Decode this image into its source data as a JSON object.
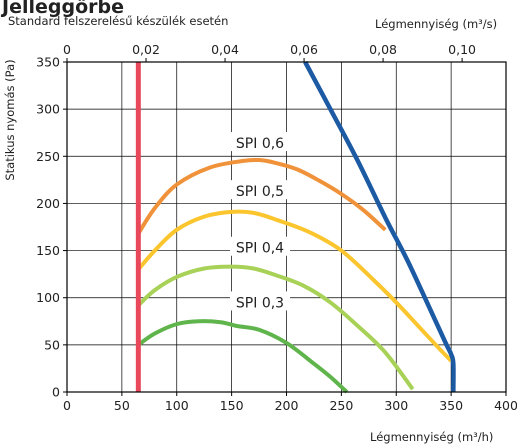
{
  "chart_data": {
    "type": "line",
    "cut_title": "Jelleggörbe",
    "subtitle": "Standard felszerelésű készülék esetén",
    "ylabel": "Statikus nyomás (Pa)",
    "xlabel_bottom": "Légmennyiség (m³/h)",
    "xlabel_top": "Légmennyiség (m³/s)",
    "xlim": [
      0,
      400
    ],
    "ylim": [
      0,
      350
    ],
    "x_ticks_bottom": [
      0,
      50,
      100,
      150,
      200,
      250,
      300,
      350,
      400
    ],
    "y_ticks": [
      0,
      50,
      100,
      150,
      200,
      250,
      300,
      350
    ],
    "x_ticks_top": [
      {
        "label": "0",
        "value_m3h": 0
      },
      {
        "label": "0,02",
        "value_m3h": 72
      },
      {
        "label": "0,04",
        "value_m3h": 144
      },
      {
        "label": "0,06",
        "value_m3h": 216
      },
      {
        "label": "0,08",
        "value_m3h": 288
      },
      {
        "label": "0,10",
        "value_m3h": 360
      }
    ],
    "grid": true,
    "series": [
      {
        "name": "SPI 0,6",
        "color": "#f0923a",
        "x": [
          65,
          80,
          100,
          130,
          160,
          175,
          190,
          210,
          230,
          250,
          270,
          290
        ],
        "y": [
          168,
          195,
          220,
          238,
          245,
          246,
          243,
          236,
          224,
          210,
          193,
          172
        ]
      },
      {
        "name": "SPI 0,5",
        "color": "#fbc52d",
        "x": [
          65,
          80,
          100,
          125,
          150,
          170,
          190,
          220,
          250,
          280,
          300,
          320,
          340,
          350
        ],
        "y": [
          130,
          150,
          172,
          186,
          191,
          190,
          183,
          170,
          150,
          118,
          95,
          70,
          45,
          33
        ]
      },
      {
        "name": "SPI 0,4",
        "color": "#a8d157",
        "x": [
          65,
          80,
          100,
          125,
          150,
          170,
          190,
          215,
          240,
          265,
          290,
          315
        ],
        "y": [
          92,
          108,
          122,
          131,
          133,
          131,
          124,
          113,
          95,
          70,
          42,
          3
        ]
      },
      {
        "name": "SPI 0,3",
        "color": "#5fb54b",
        "x": [
          65,
          80,
          100,
          120,
          140,
          155,
          175,
          200,
          225,
          240,
          255
        ],
        "y": [
          50,
          62,
          72,
          75,
          74,
          70,
          66,
          52,
          30,
          16,
          0
        ]
      },
      {
        "name": "",
        "color": "#1c5aa3",
        "x": [
          217,
          240,
          265,
          290,
          310,
          330,
          345,
          350,
          352,
          352
        ],
        "y": [
          350,
          300,
          245,
          185,
          140,
          90,
          52,
          40,
          30,
          0
        ]
      },
      {
        "name": "",
        "color": "#e8485a",
        "x": [
          65,
          65
        ],
        "y": [
          0,
          350
        ]
      }
    ],
    "annotations": [
      {
        "text": "SPI 0,6",
        "x": 154,
        "y": 264
      },
      {
        "text": "SPI 0,5",
        "x": 154,
        "y": 213
      },
      {
        "text": "SPI 0,4",
        "x": 154,
        "y": 153
      },
      {
        "text": "SPI 0,3",
        "x": 154,
        "y": 95
      }
    ]
  }
}
